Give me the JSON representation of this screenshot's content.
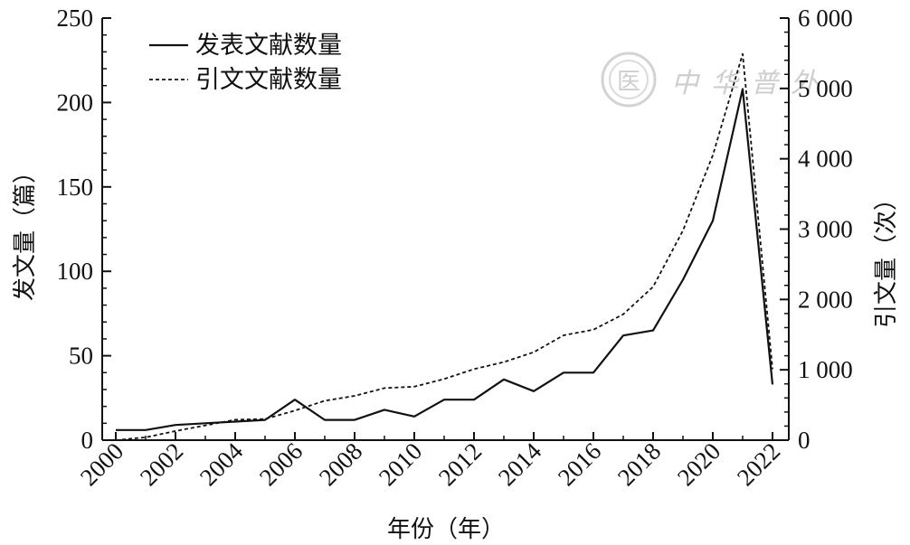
{
  "chart_data": {
    "type": "line",
    "x": [
      2000,
      2001,
      2002,
      2003,
      2004,
      2005,
      2006,
      2007,
      2008,
      2009,
      2010,
      2011,
      2012,
      2013,
      2014,
      2015,
      2016,
      2017,
      2018,
      2019,
      2020,
      2021,
      2022
    ],
    "x_tick_labels": [
      "2000",
      "2002",
      "2004",
      "2006",
      "2008",
      "2010",
      "2012",
      "2014",
      "2016",
      "2018",
      "2020",
      "2022"
    ],
    "xlim": [
      2000,
      2022
    ],
    "xlabel": "年份（年）",
    "ylabel_left": "发文量（篇）",
    "ylabel_right": "引文量（次）",
    "ylim_left": [
      0,
      250
    ],
    "ylim_right": [
      0,
      6000
    ],
    "y_left_tick_labels": [
      "0",
      "50",
      "100",
      "150",
      "200",
      "250"
    ],
    "y_right_tick_labels": [
      "0",
      "1 000",
      "2 000",
      "3 000",
      "4 000",
      "5 000",
      "6 000"
    ],
    "series": [
      {
        "name": "发表文献数量",
        "axis": "left",
        "style": "solid",
        "values": [
          6,
          6,
          9,
          10,
          11,
          12,
          24,
          12,
          12,
          18,
          14,
          24,
          24,
          36,
          29,
          40,
          40,
          62,
          65,
          95,
          130,
          208,
          33
        ]
      },
      {
        "name": "引文文献数量",
        "axis": "right",
        "style": "dashed",
        "values": [
          0,
          40,
          130,
          210,
          290,
          300,
          420,
          560,
          630,
          740,
          760,
          870,
          1010,
          1110,
          1250,
          1490,
          1570,
          1790,
          2180,
          2980,
          4050,
          5490,
          1010
        ]
      }
    ],
    "legend_position": "top-left",
    "grid": false
  },
  "watermark": {
    "text": "中华普外",
    "seal_char": "医"
  }
}
